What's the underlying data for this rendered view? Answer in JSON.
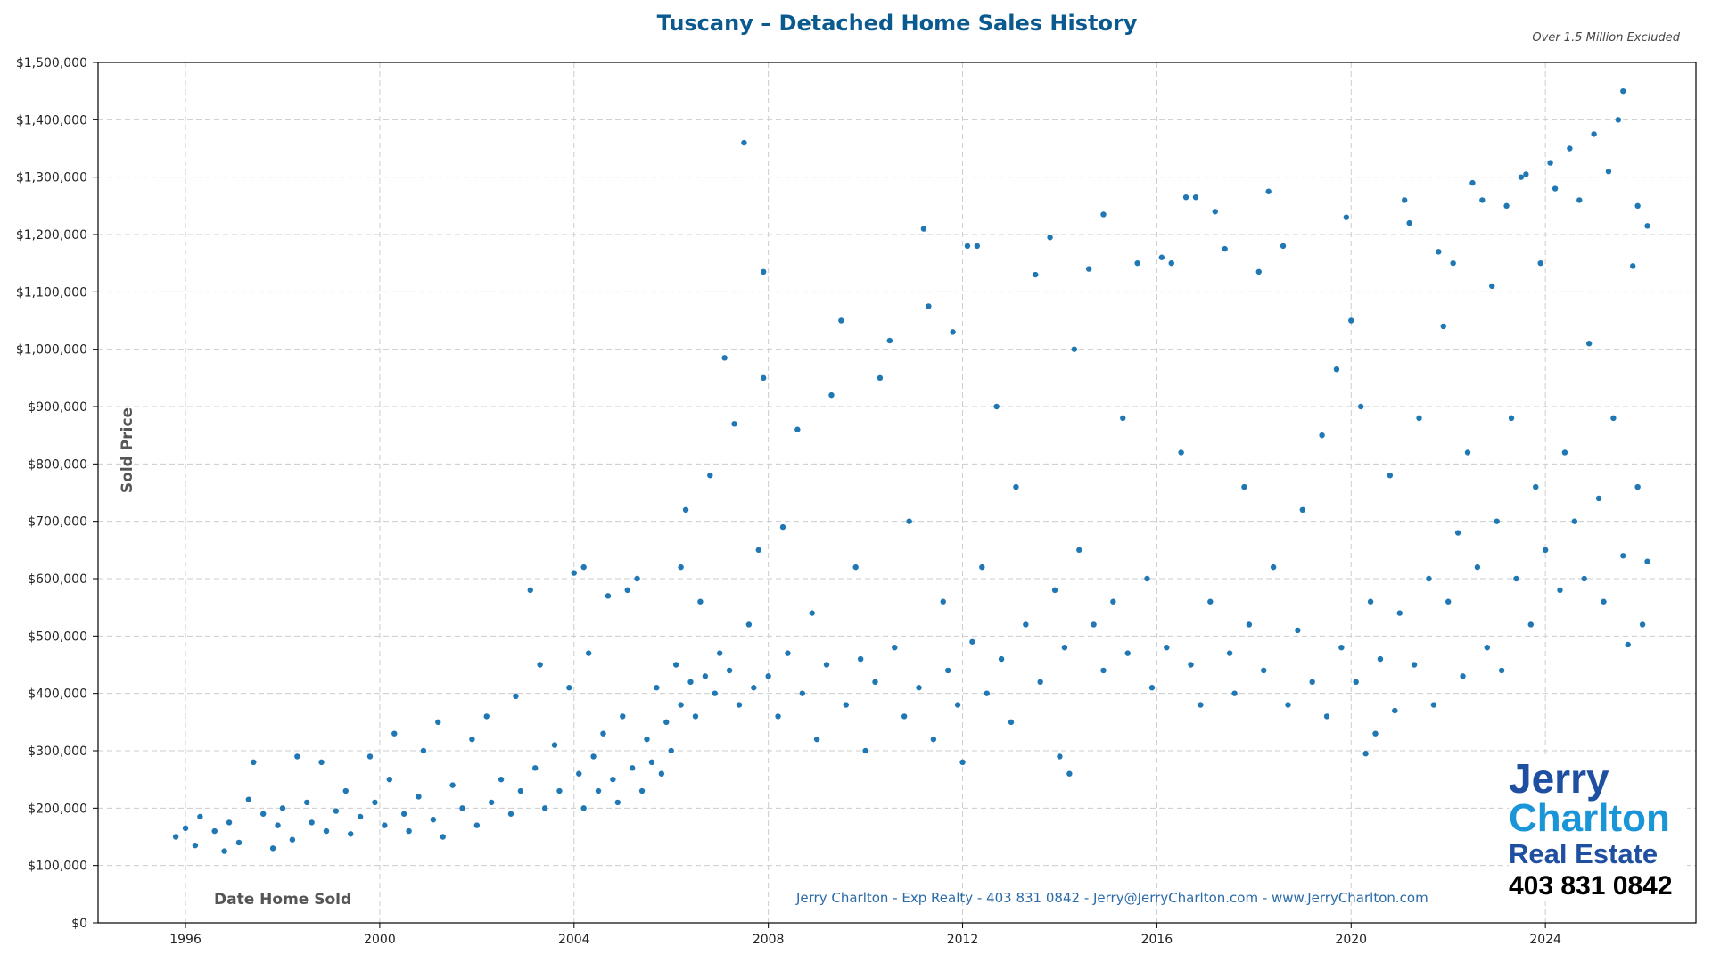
{
  "chart_data": {
    "type": "scatter",
    "title": "Tuscany – Detached Home Sales History",
    "subtitle": "Over 1.5 Million Excluded",
    "xlabel": "Date Home Sold",
    "ylabel": "Sold Price",
    "xlim": [
      1994.2,
      2027.1
    ],
    "ylim": [
      0,
      1500000
    ],
    "x_ticks": [
      1996,
      2000,
      2004,
      2008,
      2012,
      2016,
      2020,
      2024
    ],
    "y_ticks": [
      0,
      100000,
      200000,
      300000,
      400000,
      500000,
      600000,
      700000,
      800000,
      900000,
      1000000,
      1100000,
      1200000,
      1300000,
      1400000,
      1500000
    ],
    "y_tick_labels": [
      "$0",
      "$100,000",
      "$200,000",
      "$300,000",
      "$400,000",
      "$500,000",
      "$600,000",
      "$700,000",
      "$800,000",
      "$900,000",
      "$1,000,000",
      "$1,100,000",
      "$1,200,000",
      "$1,300,000",
      "$1,400,000",
      "$1,500,000"
    ],
    "grid": true,
    "point_color": "#1f77b4",
    "points": [
      [
        1995.8,
        150000
      ],
      [
        1996.0,
        165000
      ],
      [
        1996.2,
        135000
      ],
      [
        1996.3,
        185000
      ],
      [
        1996.6,
        160000
      ],
      [
        1996.8,
        125000
      ],
      [
        1996.9,
        175000
      ],
      [
        1997.1,
        140000
      ],
      [
        1997.3,
        215000
      ],
      [
        1997.4,
        280000
      ],
      [
        1997.6,
        190000
      ],
      [
        1997.8,
        130000
      ],
      [
        1997.9,
        170000
      ],
      [
        1998.0,
        200000
      ],
      [
        1998.2,
        145000
      ],
      [
        1998.3,
        290000
      ],
      [
        1998.5,
        210000
      ],
      [
        1998.6,
        175000
      ],
      [
        1998.8,
        280000
      ],
      [
        1998.9,
        160000
      ],
      [
        1999.1,
        195000
      ],
      [
        1999.3,
        230000
      ],
      [
        1999.4,
        155000
      ],
      [
        1999.6,
        185000
      ],
      [
        1999.8,
        290000
      ],
      [
        1999.9,
        210000
      ],
      [
        2000.1,
        170000
      ],
      [
        2000.2,
        250000
      ],
      [
        2000.3,
        330000
      ],
      [
        2000.5,
        190000
      ],
      [
        2000.6,
        160000
      ],
      [
        2000.8,
        220000
      ],
      [
        2000.9,
        300000
      ],
      [
        2001.1,
        180000
      ],
      [
        2001.2,
        350000
      ],
      [
        2001.3,
        150000
      ],
      [
        2001.5,
        240000
      ],
      [
        2001.7,
        200000
      ],
      [
        2001.9,
        320000
      ],
      [
        2002.0,
        170000
      ],
      [
        2002.2,
        360000
      ],
      [
        2002.3,
        210000
      ],
      [
        2002.5,
        250000
      ],
      [
        2002.7,
        190000
      ],
      [
        2002.8,
        395000
      ],
      [
        2002.9,
        230000
      ],
      [
        2003.1,
        580000
      ],
      [
        2003.2,
        270000
      ],
      [
        2003.3,
        450000
      ],
      [
        2003.4,
        200000
      ],
      [
        2003.6,
        310000
      ],
      [
        2003.7,
        230000
      ],
      [
        2003.9,
        410000
      ],
      [
        2004.0,
        610000
      ],
      [
        2004.1,
        260000
      ],
      [
        2004.2,
        620000
      ],
      [
        2004.2,
        200000
      ],
      [
        2004.3,
        470000
      ],
      [
        2004.4,
        290000
      ],
      [
        2004.5,
        230000
      ],
      [
        2004.6,
        330000
      ],
      [
        2004.7,
        570000
      ],
      [
        2004.8,
        250000
      ],
      [
        2004.9,
        210000
      ],
      [
        2005.0,
        360000
      ],
      [
        2005.1,
        580000
      ],
      [
        2005.2,
        270000
      ],
      [
        2005.3,
        600000
      ],
      [
        2005.4,
        230000
      ],
      [
        2005.5,
        320000
      ],
      [
        2005.6,
        280000
      ],
      [
        2005.7,
        410000
      ],
      [
        2005.8,
        260000
      ],
      [
        2005.9,
        350000
      ],
      [
        2006.0,
        300000
      ],
      [
        2006.1,
        450000
      ],
      [
        2006.2,
        620000
      ],
      [
        2006.2,
        380000
      ],
      [
        2006.3,
        720000
      ],
      [
        2006.4,
        420000
      ],
      [
        2006.5,
        360000
      ],
      [
        2006.6,
        560000
      ],
      [
        2006.7,
        430000
      ],
      [
        2006.8,
        780000
      ],
      [
        2006.9,
        400000
      ],
      [
        2007.0,
        470000
      ],
      [
        2007.1,
        985000
      ],
      [
        2007.2,
        440000
      ],
      [
        2007.3,
        870000
      ],
      [
        2007.4,
        380000
      ],
      [
        2007.5,
        1360000
      ],
      [
        2007.6,
        520000
      ],
      [
        2007.7,
        410000
      ],
      [
        2007.8,
        650000
      ],
      [
        2007.9,
        1135000
      ],
      [
        2007.9,
        950000
      ],
      [
        2008.0,
        430000
      ],
      [
        2008.2,
        360000
      ],
      [
        2008.3,
        690000
      ],
      [
        2008.4,
        470000
      ],
      [
        2008.6,
        860000
      ],
      [
        2008.7,
        400000
      ],
      [
        2008.9,
        540000
      ],
      [
        2009.0,
        320000
      ],
      [
        2009.2,
        450000
      ],
      [
        2009.3,
        920000
      ],
      [
        2009.5,
        1050000
      ],
      [
        2009.6,
        380000
      ],
      [
        2009.8,
        620000
      ],
      [
        2009.9,
        460000
      ],
      [
        2010.0,
        300000
      ],
      [
        2010.2,
        420000
      ],
      [
        2010.3,
        950000
      ],
      [
        2010.5,
        1015000
      ],
      [
        2010.6,
        480000
      ],
      [
        2010.8,
        360000
      ],
      [
        2010.9,
        700000
      ],
      [
        2011.1,
        410000
      ],
      [
        2011.2,
        1210000
      ],
      [
        2011.3,
        1075000
      ],
      [
        2011.4,
        320000
      ],
      [
        2011.6,
        560000
      ],
      [
        2011.7,
        440000
      ],
      [
        2011.8,
        1030000
      ],
      [
        2011.9,
        380000
      ],
      [
        2012.0,
        280000
      ],
      [
        2012.1,
        1180000
      ],
      [
        2012.2,
        490000
      ],
      [
        2012.3,
        1180000
      ],
      [
        2012.4,
        620000
      ],
      [
        2012.5,
        400000
      ],
      [
        2012.7,
        900000
      ],
      [
        2012.8,
        460000
      ],
      [
        2013.0,
        350000
      ],
      [
        2013.1,
        760000
      ],
      [
        2013.3,
        520000
      ],
      [
        2013.5,
        1130000
      ],
      [
        2013.6,
        420000
      ],
      [
        2013.8,
        1195000
      ],
      [
        2013.9,
        580000
      ],
      [
        2014.0,
        290000
      ],
      [
        2014.1,
        480000
      ],
      [
        2014.2,
        260000
      ],
      [
        2014.3,
        1000000
      ],
      [
        2014.4,
        650000
      ],
      [
        2014.6,
        1140000
      ],
      [
        2014.7,
        520000
      ],
      [
        2014.9,
        1235000
      ],
      [
        2014.9,
        440000
      ],
      [
        2015.1,
        560000
      ],
      [
        2015.3,
        880000
      ],
      [
        2015.4,
        470000
      ],
      [
        2015.6,
        1150000
      ],
      [
        2015.8,
        600000
      ],
      [
        2015.9,
        410000
      ],
      [
        2016.1,
        1160000
      ],
      [
        2016.2,
        480000
      ],
      [
        2016.3,
        1150000
      ],
      [
        2016.5,
        820000
      ],
      [
        2016.6,
        1265000
      ],
      [
        2016.7,
        450000
      ],
      [
        2016.8,
        1265000
      ],
      [
        2016.9,
        380000
      ],
      [
        2017.1,
        560000
      ],
      [
        2017.2,
        1240000
      ],
      [
        2017.4,
        1175000
      ],
      [
        2017.5,
        470000
      ],
      [
        2017.6,
        400000
      ],
      [
        2017.8,
        760000
      ],
      [
        2017.9,
        520000
      ],
      [
        2018.1,
        1135000
      ],
      [
        2018.2,
        440000
      ],
      [
        2018.3,
        1275000
      ],
      [
        2018.4,
        620000
      ],
      [
        2018.6,
        1180000
      ],
      [
        2018.7,
        380000
      ],
      [
        2018.9,
        510000
      ],
      [
        2019.0,
        720000
      ],
      [
        2019.2,
        420000
      ],
      [
        2019.4,
        850000
      ],
      [
        2019.5,
        360000
      ],
      [
        2019.7,
        965000
      ],
      [
        2019.8,
        480000
      ],
      [
        2019.9,
        1230000
      ],
      [
        2020.0,
        1050000
      ],
      [
        2020.1,
        420000
      ],
      [
        2020.2,
        900000
      ],
      [
        2020.3,
        295000
      ],
      [
        2020.4,
        560000
      ],
      [
        2020.5,
        330000
      ],
      [
        2020.6,
        460000
      ],
      [
        2020.8,
        780000
      ],
      [
        2020.9,
        370000
      ],
      [
        2021.0,
        540000
      ],
      [
        2021.1,
        1260000
      ],
      [
        2021.2,
        1220000
      ],
      [
        2021.3,
        450000
      ],
      [
        2021.4,
        880000
      ],
      [
        2021.6,
        600000
      ],
      [
        2021.7,
        380000
      ],
      [
        2021.8,
        1170000
      ],
      [
        2021.9,
        1040000
      ],
      [
        2022.0,
        560000
      ],
      [
        2022.1,
        1150000
      ],
      [
        2022.2,
        680000
      ],
      [
        2022.3,
        430000
      ],
      [
        2022.4,
        820000
      ],
      [
        2022.5,
        1290000
      ],
      [
        2022.6,
        620000
      ],
      [
        2022.7,
        1260000
      ],
      [
        2022.8,
        480000
      ],
      [
        2022.9,
        1110000
      ],
      [
        2023.0,
        700000
      ],
      [
        2023.1,
        440000
      ],
      [
        2023.2,
        1250000
      ],
      [
        2023.3,
        880000
      ],
      [
        2023.4,
        600000
      ],
      [
        2023.5,
        1300000
      ],
      [
        2023.6,
        1305000
      ],
      [
        2023.7,
        520000
      ],
      [
        2023.8,
        760000
      ],
      [
        2023.9,
        1150000
      ],
      [
        2024.0,
        650000
      ],
      [
        2024.1,
        1325000
      ],
      [
        2024.2,
        1280000
      ],
      [
        2024.3,
        580000
      ],
      [
        2024.4,
        820000
      ],
      [
        2024.5,
        1350000
      ],
      [
        2024.6,
        700000
      ],
      [
        2024.7,
        1260000
      ],
      [
        2024.8,
        600000
      ],
      [
        2024.9,
        1010000
      ],
      [
        2025.0,
        1375000
      ],
      [
        2025.1,
        740000
      ],
      [
        2025.2,
        560000
      ],
      [
        2025.3,
        1310000
      ],
      [
        2025.4,
        880000
      ],
      [
        2025.5,
        1400000
      ],
      [
        2025.6,
        1450000
      ],
      [
        2025.6,
        640000
      ],
      [
        2025.7,
        485000
      ],
      [
        2025.8,
        1145000
      ],
      [
        2025.9,
        1250000
      ],
      [
        2025.9,
        760000
      ],
      [
        2026.0,
        520000
      ],
      [
        2026.1,
        1215000
      ],
      [
        2026.1,
        630000
      ]
    ]
  },
  "footer": "Jerry Charlton - Exp Realty - 403 831 0842 - Jerry@JerryCharlton.com - www.JerryCharlton.com",
  "logo": {
    "line1": "Jerry",
    "line2": "Charlton",
    "line3": "Real Estate",
    "phone": "403 831 0842"
  }
}
